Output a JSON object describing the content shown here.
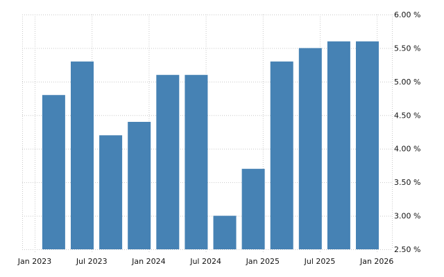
{
  "chart_data": {
    "type": "bar",
    "title": "",
    "xlabel": "",
    "ylabel": "",
    "categories": [
      "Mar 2023",
      "Jun 2023",
      "Sep 2023",
      "Dec 2023",
      "Mar 2024",
      "Jun 2024",
      "Sep 2024",
      "Dec 2024",
      "Mar 2025",
      "Jun 2025",
      "Sep 2025",
      "Dec 2025"
    ],
    "category_month_index": [
      2,
      5,
      8,
      11,
      14,
      17,
      20,
      23,
      26,
      29,
      32,
      35
    ],
    "values": [
      4.8,
      5.3,
      4.2,
      4.4,
      5.1,
      5.1,
      3.0,
      3.7,
      5.3,
      5.5,
      5.6,
      5.6
    ],
    "ylim": [
      2.5,
      6.0
    ],
    "y_ticks": [
      2.5,
      3.0,
      3.5,
      4.0,
      4.5,
      5.0,
      5.5,
      6.0
    ],
    "y_tick_labels": [
      "2.50 %",
      "3.00 %",
      "3.50 %",
      "4.00 %",
      "4.50 %",
      "5.00 %",
      "5.50 %",
      "6.00 %"
    ],
    "x_tick_month_index": [
      0,
      6,
      12,
      18,
      24,
      30,
      36
    ],
    "x_tick_labels": [
      "Jan 2023",
      "Jul 2023",
      "Jan 2024",
      "Jul 2024",
      "Jan 2025",
      "Jul 2025",
      "Jan 2026"
    ],
    "grid": true,
    "legend": "none",
    "bar_color": "#4682b4",
    "grid_color": "#c8c8c8"
  }
}
